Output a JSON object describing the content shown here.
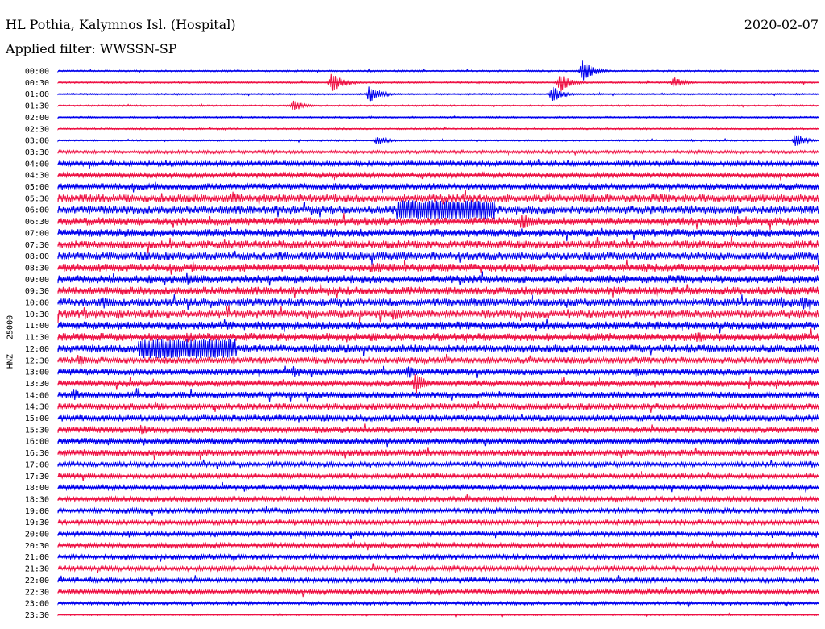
{
  "chart_data": {
    "type": "line",
    "title": "HL Pothia, Kalymnos Isl. (Hospital)",
    "date": "2020-02-07",
    "subtitle": "Applied filter: WWSSN-SP",
    "ylabel": "HNZ - 25000",
    "colors": [
      "#0000ee",
      "#ee1144"
    ],
    "row_labels": [
      "00:00",
      "00:30",
      "01:00",
      "01:30",
      "02:00",
      "02:30",
      "03:00",
      "03:30",
      "04:00",
      "04:30",
      "05:00",
      "05:30",
      "06:00",
      "06:30",
      "07:00",
      "07:30",
      "08:00",
      "08:30",
      "09:00",
      "09:30",
      "10:00",
      "10:30",
      "11:00",
      "11:30",
      "12:00",
      "12:30",
      "13:00",
      "13:30",
      "14:00",
      "14:30",
      "15:00",
      "15:30",
      "16:00",
      "16:30",
      "17:00",
      "17:30",
      "18:00",
      "18:30",
      "19:00",
      "19:30",
      "20:00",
      "20:30",
      "21:00",
      "21:30",
      "22:00",
      "22:30",
      "23:00",
      "23:30"
    ],
    "noise_level": [
      1,
      1,
      1,
      1,
      1,
      1,
      1,
      2,
      3,
      3,
      4,
      5,
      5,
      5,
      5,
      5,
      5,
      5,
      5,
      5,
      5,
      5,
      5,
      5,
      5,
      4,
      4,
      4,
      4,
      4,
      4,
      4,
      4,
      4,
      3,
      3,
      3,
      3,
      3,
      3,
      3,
      3,
      3,
      3,
      3,
      3,
      2,
      1
    ],
    "events": [
      {
        "row": 0,
        "x": 0.69,
        "amp": 14
      },
      {
        "row": 1,
        "x": 0.36,
        "amp": 13
      },
      {
        "row": 1,
        "x": 0.66,
        "amp": 12
      },
      {
        "row": 1,
        "x": 0.81,
        "amp": 7
      },
      {
        "row": 2,
        "x": 0.41,
        "amp": 12
      },
      {
        "row": 2,
        "x": 0.65,
        "amp": 10
      },
      {
        "row": 3,
        "x": 0.31,
        "amp": 7
      },
      {
        "row": 6,
        "x": 0.42,
        "amp": 6
      },
      {
        "row": 6,
        "x": 0.97,
        "amp": 8
      },
      {
        "row": 11,
        "x": 0.23,
        "amp": 10
      },
      {
        "row": 12,
        "x": 0.51,
        "amp": 12,
        "wide": 0.13
      },
      {
        "row": 13,
        "x": 0.61,
        "amp": 12
      },
      {
        "row": 16,
        "x": 0.29,
        "amp": 7
      },
      {
        "row": 17,
        "x": 0.42,
        "amp": 7
      },
      {
        "row": 18,
        "x": 0.17,
        "amp": 10
      },
      {
        "row": 19,
        "x": 0.64,
        "amp": 7
      },
      {
        "row": 20,
        "x": 0.06,
        "amp": 8
      },
      {
        "row": 20,
        "x": 0.98,
        "amp": 9
      },
      {
        "row": 21,
        "x": 0.44,
        "amp": 8
      },
      {
        "row": 23,
        "x": 0.17,
        "amp": 8
      },
      {
        "row": 23,
        "x": 0.84,
        "amp": 9
      },
      {
        "row": 24,
        "x": 0.17,
        "amp": 12,
        "wide": 0.13
      },
      {
        "row": 25,
        "x": 0.03,
        "amp": 8
      },
      {
        "row": 26,
        "x": 0.31,
        "amp": 8
      },
      {
        "row": 26,
        "x": 0.46,
        "amp": 9
      },
      {
        "row": 26,
        "x": 0.76,
        "amp": 7
      },
      {
        "row": 27,
        "x": 0.47,
        "amp": 14
      },
      {
        "row": 28,
        "x": 0.02,
        "amp": 8
      },
      {
        "row": 31,
        "x": 0.11,
        "amp": 8
      }
    ]
  }
}
